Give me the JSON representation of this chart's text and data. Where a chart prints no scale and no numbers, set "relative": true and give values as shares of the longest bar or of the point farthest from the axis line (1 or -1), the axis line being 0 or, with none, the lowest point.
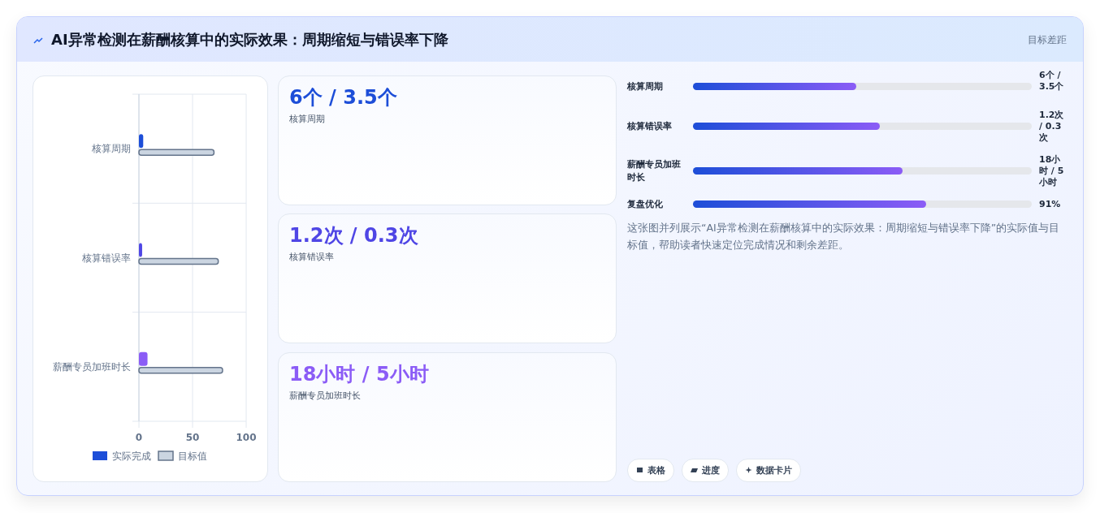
{
  "chart_data": [
    {
      "type": "other",
      "title": "AI异常检测在薪酬核算中的实际效果：周期缩短与错误率下降",
      "annotations": [
        "目标差距"
      ]
    },
    {
      "type": "bar",
      "orientation": "horizontal",
      "categories": [
        "核算周期",
        "核算错误率",
        "薪酬专员加班时长"
      ],
      "xlim": [
        0,
        100
      ],
      "xticks": [
        0,
        50,
        100
      ],
      "grid": true,
      "legend": "bottom",
      "series": [
        {
          "name": "实际完成",
          "color": "#1d4ed8",
          "colors": [
            "#1d4ed8",
            "#4f46e5",
            "#8b5cf6"
          ],
          "values": [
            4,
            3,
            8
          ]
        },
        {
          "name": "目标值",
          "color": "#cbd5e1",
          "values": [
            70,
            74,
            78
          ]
        }
      ]
    },
    {
      "type": "other",
      "annotations": [
        "6个 / 3.5个",
        "核算周期",
        "1.2次 / 0.3次",
        "核算错误率",
        "18小时 / 5小时",
        "薪酬专员加班时长"
      ],
      "colors": [
        "#1d4ed8",
        "#4f46e5",
        "#8b5cf6"
      ]
    },
    {
      "type": "bar",
      "orientation": "horizontal",
      "relative": true,
      "categories": [
        "核算周期",
        "核算错误率",
        "薪酬专员加班时长",
        "复盘优化"
      ],
      "values": [
        0.7,
        0.8,
        0.9,
        1
      ],
      "color": "#1d4ed8",
      "annotations": [
        "6个 / 3.5个",
        "1.2次 / 0.3次",
        "18小时 / 5小时",
        "91%",
        "这张图并列展示“AI异常检测在薪酬核算中的实际效果：周期缩短与错误率下降”的实际值与目标值，帮助读者快速定位完成情况和剩余差距。",
        "表格",
        "进度",
        "数据卡片"
      ]
    }
  ]
}
